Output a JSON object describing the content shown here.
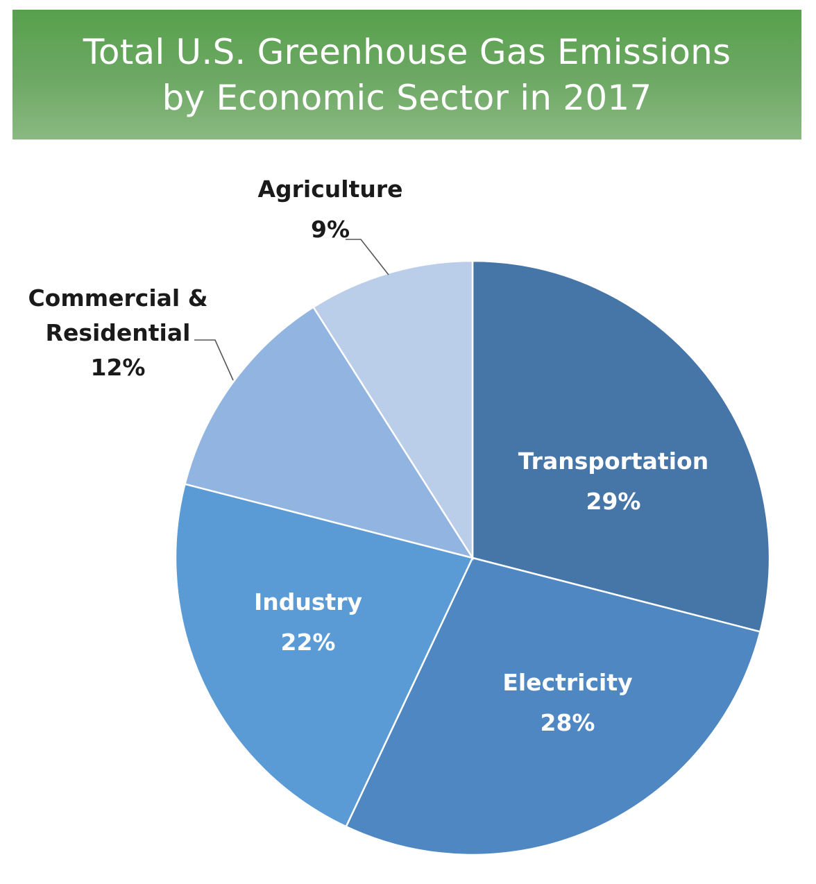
{
  "chart_data": {
    "type": "pie",
    "title": "Total U.S. Greenhouse Gas Emissions by Economic Sector in 2017",
    "title_lines": [
      "Total U.S. Greenhouse Gas Emissions",
      "by Economic Sector in 2017"
    ],
    "unit": "%",
    "start_angle_deg": 0,
    "direction": "clockwise",
    "legend": "none",
    "slices": [
      {
        "label": "Transportation",
        "value": 29,
        "value_label": "29%",
        "color": "#4675a7",
        "label_color": "#ffffff",
        "label_position": "inside"
      },
      {
        "label": "Electricity",
        "value": 28,
        "value_label": "28%",
        "color": "#4e87c1",
        "label_color": "#ffffff",
        "label_position": "inside"
      },
      {
        "label": "Industry",
        "value": 22,
        "value_label": "22%",
        "color": "#5b9bd5",
        "label_color": "#ffffff",
        "label_position": "inside"
      },
      {
        "label": "Commercial & Residential",
        "value": 12,
        "value_label": "12%",
        "color": "#92b4e0",
        "label_color": "#1a1a1a",
        "label_position": "outside"
      },
      {
        "label": "Agriculture",
        "value": 9,
        "value_label": "9%",
        "color": "#bacde9",
        "label_color": "#1a1a1a",
        "label_position": "outside"
      }
    ],
    "colors": {
      "banner_top": "#57a04c",
      "banner_bottom": "#8ab981",
      "title_text": "#ffffff"
    }
  }
}
